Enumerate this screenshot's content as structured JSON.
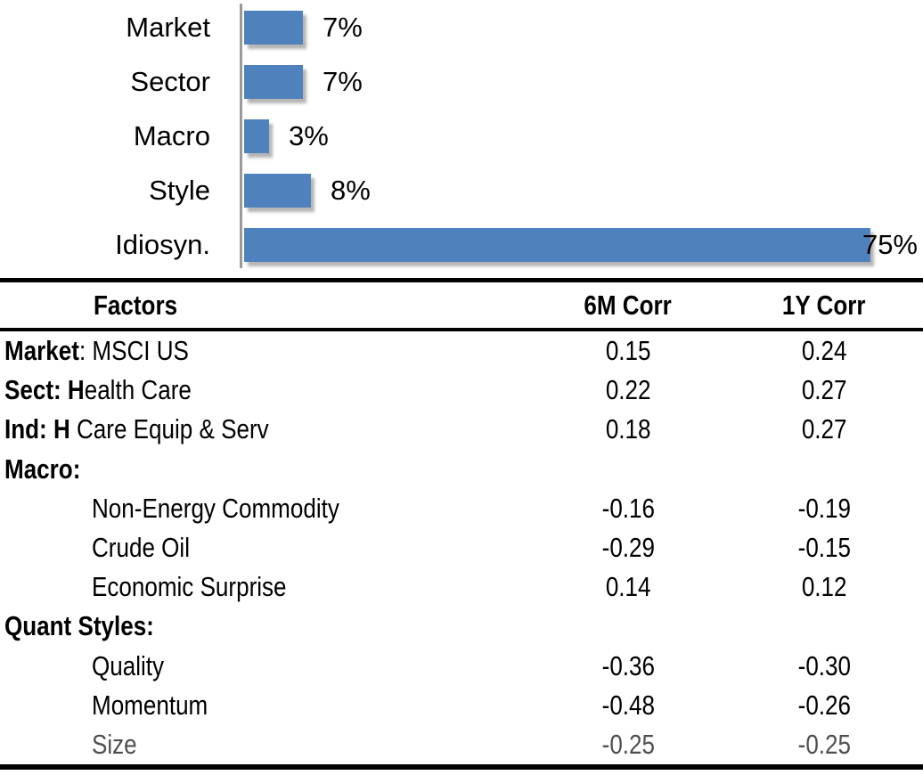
{
  "chart_data": [
    {
      "type": "bar",
      "orientation": "horizontal",
      "title": "",
      "categories": [
        "Market",
        "Sector",
        "Macro",
        "Style",
        "Idiosyn."
      ],
      "values": [
        7,
        7,
        3,
        8,
        75
      ],
      "value_labels": [
        "7%",
        "7%",
        "3%",
        "8%",
        "75%"
      ],
      "unit": "%",
      "xlim": [
        0,
        78
      ],
      "grid": false,
      "legend": "none",
      "bar_color": "#4f81bd",
      "axis_line_color": "#9a9a9a",
      "label_color": "#000000"
    },
    {
      "type": "table",
      "headers": [
        "Factors",
        "6M Corr",
        "1Y Corr"
      ],
      "rows": [
        {
          "label": [
            {
              "text": "Market",
              "bold": true
            },
            {
              "text": ": MSCI US",
              "bold": false
            }
          ],
          "indent": false,
          "muted": false,
          "corr_6m": "0.15",
          "corr_1y": "0.24"
        },
        {
          "label": [
            {
              "text": "Sect: H",
              "bold": true
            },
            {
              "text": "ealth Care",
              "bold": false
            }
          ],
          "indent": false,
          "muted": false,
          "corr_6m": "0.22",
          "corr_1y": "0.27"
        },
        {
          "label": [
            {
              "text": "Ind: H",
              "bold": true
            },
            {
              "text": " Care Equip & Serv",
              "bold": false
            }
          ],
          "indent": false,
          "muted": false,
          "corr_6m": "0.18",
          "corr_1y": "0.27"
        },
        {
          "label": [
            {
              "text": "Macro:",
              "bold": true
            }
          ],
          "indent": false,
          "muted": false,
          "corr_6m": "",
          "corr_1y": ""
        },
        {
          "label": [
            {
              "text": "Non-Energy Commodity",
              "bold": false
            }
          ],
          "indent": true,
          "muted": false,
          "corr_6m": "-0.16",
          "corr_1y": "-0.19"
        },
        {
          "label": [
            {
              "text": "Crude Oil",
              "bold": false
            }
          ],
          "indent": true,
          "muted": false,
          "corr_6m": "-0.29",
          "corr_1y": "-0.15"
        },
        {
          "label": [
            {
              "text": "Economic Surprise",
              "bold": false
            }
          ],
          "indent": true,
          "muted": false,
          "corr_6m": "0.14",
          "corr_1y": "0.12"
        },
        {
          "label": [
            {
              "text": "Quant Styles:",
              "bold": true
            }
          ],
          "indent": false,
          "muted": false,
          "corr_6m": "",
          "corr_1y": ""
        },
        {
          "label": [
            {
              "text": "Quality",
              "bold": false
            }
          ],
          "indent": true,
          "muted": false,
          "corr_6m": "-0.36",
          "corr_1y": "-0.30"
        },
        {
          "label": [
            {
              "text": "Momentum",
              "bold": false
            }
          ],
          "indent": true,
          "muted": false,
          "corr_6m": "-0.48",
          "corr_1y": "-0.26"
        },
        {
          "label": [
            {
              "text": "Size",
              "bold": false
            }
          ],
          "indent": true,
          "muted": true,
          "corr_6m": "-0.25",
          "corr_1y": "-0.25"
        }
      ]
    }
  ]
}
